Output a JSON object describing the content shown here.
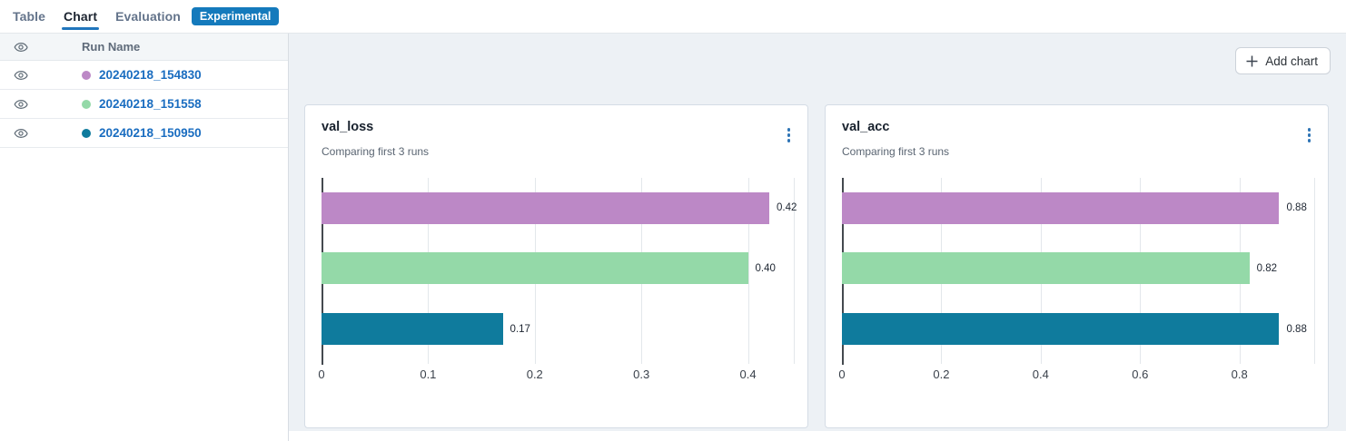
{
  "tabs": {
    "items": [
      {
        "label": "Table",
        "active": false
      },
      {
        "label": "Chart",
        "active": true
      },
      {
        "label": "Evaluation",
        "active": false
      }
    ],
    "badge": "Experimental"
  },
  "sidebar": {
    "header": {
      "run_name_label": "Run Name",
      "eye_icon": "eye-icon"
    },
    "runs": [
      {
        "name": "20240218_154830",
        "color": "#bc88c6"
      },
      {
        "name": "20240218_151558",
        "color": "#94d9a8"
      },
      {
        "name": "20240218_150950",
        "color": "#0f7b9d"
      }
    ]
  },
  "toolbar": {
    "add_chart_label": "Add chart",
    "plus_icon": "plus-icon"
  },
  "colors": {
    "accent_blue": "#2176bd",
    "badge_blue": "#147abc",
    "link_blue": "#1a6dc0",
    "kebab_blue": "#2e74b5",
    "panel_bg": "#edf1f5",
    "run_purple": "#bc88c6",
    "run_green": "#94d9a8",
    "run_teal": "#0f7b9d"
  },
  "chart_data": [
    {
      "type": "bar",
      "orientation": "horizontal",
      "title": "val_loss",
      "subtitle": "Comparing first 3 runs",
      "categories": [
        "20240218_154830",
        "20240218_151558",
        "20240218_150950"
      ],
      "values": [
        0.42,
        0.4,
        0.17
      ],
      "value_labels": [
        "0.42",
        "0.40",
        "0.17"
      ],
      "bar_colors": [
        "#bc88c6",
        "#94d9a8",
        "#0f7b9d"
      ],
      "xlim": [
        0,
        0.443
      ],
      "xticks": [
        0,
        0.1,
        0.2,
        0.3,
        0.4
      ],
      "xtick_labels": [
        "0",
        "0.1",
        "0.2",
        "0.3",
        "0.4"
      ],
      "grid": true,
      "legend": "none",
      "menu_icon": "kebab-menu-icon"
    },
    {
      "type": "bar",
      "orientation": "horizontal",
      "title": "val_acc",
      "subtitle": "Comparing first 3 runs",
      "categories": [
        "20240218_154830",
        "20240218_151558",
        "20240218_150950"
      ],
      "values": [
        0.88,
        0.82,
        0.88
      ],
      "value_labels": [
        "0.88",
        "0.82",
        "0.88"
      ],
      "bar_colors": [
        "#bc88c6",
        "#94d9a8",
        "#0f7b9d"
      ],
      "xlim": [
        0,
        0.9504
      ],
      "xticks": [
        0,
        0.2,
        0.4,
        0.6,
        0.8
      ],
      "xtick_labels": [
        "0",
        "0.2",
        "0.4",
        "0.6",
        "0.8"
      ],
      "grid": true,
      "legend": "none",
      "menu_icon": "kebab-menu-icon"
    }
  ]
}
